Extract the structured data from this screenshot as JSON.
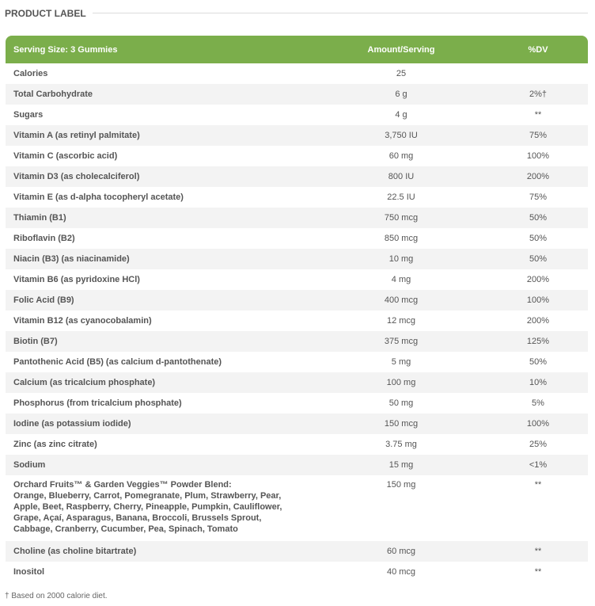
{
  "section_title": "PRODUCT LABEL",
  "table": {
    "headers": [
      "Serving Size: 3 Gummies",
      "Amount/Serving",
      "%DV"
    ],
    "rows": [
      {
        "name": "Calories",
        "amount": "25",
        "dv": ""
      },
      {
        "name": "Total Carbohydrate",
        "amount": "6 g",
        "dv": "2%†"
      },
      {
        "name": "Sugars",
        "amount": "4 g",
        "dv": "**"
      },
      {
        "name": "Vitamin A (as retinyl palmitate)",
        "amount": "3,750 IU",
        "dv": "75%"
      },
      {
        "name": "Vitamin C (ascorbic acid)",
        "amount": "60 mg",
        "dv": "100%"
      },
      {
        "name": "Vitamin D3 (as cholecalciferol)",
        "amount": "800 IU",
        "dv": "200%"
      },
      {
        "name": "Vitamin E (as d-alpha tocopheryl acetate)",
        "amount": "22.5 IU",
        "dv": "75%"
      },
      {
        "name": "Thiamin (B1)",
        "amount": "750 mcg",
        "dv": "50%"
      },
      {
        "name": "Riboflavin (B2)",
        "amount": "850 mcg",
        "dv": "50%"
      },
      {
        "name": "Niacin (B3) (as niacinamide)",
        "amount": "10 mg",
        "dv": "50%"
      },
      {
        "name": "Vitamin B6 (as pyridoxine HCl)",
        "amount": "4 mg",
        "dv": "200%"
      },
      {
        "name": "Folic Acid (B9)",
        "amount": "400 mcg",
        "dv": "100%"
      },
      {
        "name": "Vitamin B12 (as cyanocobalamin)",
        "amount": "12 mcg",
        "dv": "200%"
      },
      {
        "name": "Biotin (B7)",
        "amount": "375 mcg",
        "dv": "125%"
      },
      {
        "name": "Pantothenic Acid (B5) (as calcium d-pantothenate)",
        "amount": "5 mg",
        "dv": "50%"
      },
      {
        "name": "Calcium (as tricalcium phosphate)",
        "amount": "100 mg",
        "dv": "10%"
      },
      {
        "name": "Phosphorus (from tricalcium phosphate)",
        "amount": "50 mg",
        "dv": "5%"
      },
      {
        "name": "Iodine (as potassium iodide)",
        "amount": "150 mcg",
        "dv": "100%"
      },
      {
        "name": "Zinc (as zinc citrate)",
        "amount": "3.75 mg",
        "dv": "25%"
      },
      {
        "name": "Sodium",
        "amount": "15 mg",
        "dv": "<1%"
      },
      {
        "name": "Orchard Fruits™ & Garden Veggies™ Powder Blend:",
        "lines": [
          "Orange, Blueberry, Carrot, Pomegranate, Plum, Strawberry, Pear,",
          "Apple, Beet, Raspberry, Cherry, Pineapple, Pumpkin, Cauliflower,",
          "Grape, Açaí, Asparagus, Banana, Broccoli, Brussels Sprout,",
          "Cabbage, Cranberry, Cucumber, Pea, Spinach, Tomato"
        ],
        "amount": "150 mg",
        "dv": "**"
      },
      {
        "name": "Choline (as choline bitartrate)",
        "amount": "60 mcg",
        "dv": "**"
      },
      {
        "name": "Inositol",
        "amount": "40 mcg",
        "dv": "**"
      }
    ]
  },
  "footnote": "† Based on 2000 calorie diet."
}
